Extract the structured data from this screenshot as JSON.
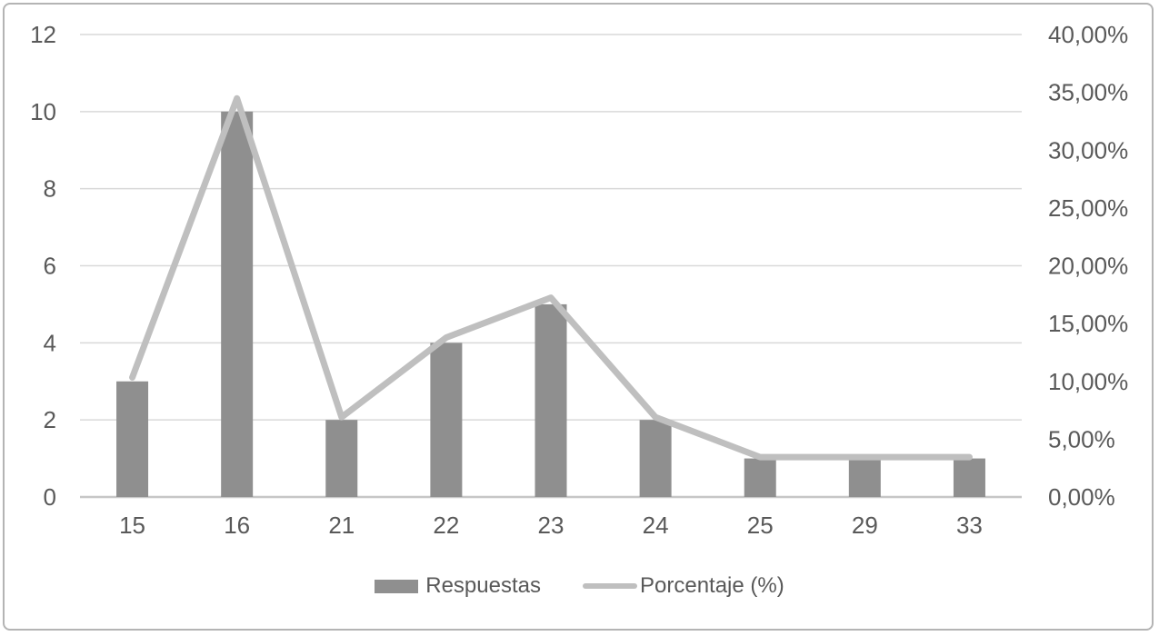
{
  "chart_data": {
    "type": "combo-bar-line",
    "categories": [
      "15",
      "16",
      "21",
      "22",
      "23",
      "24",
      "25",
      "29",
      "33"
    ],
    "series": [
      {
        "name": "Respuestas",
        "type": "bar",
        "axis": "left",
        "color": "#8f8f8f",
        "values": [
          3,
          10,
          2,
          4,
          5,
          2,
          1,
          1,
          1
        ]
      },
      {
        "name": "Porcentaje (%)",
        "type": "line",
        "axis": "right",
        "color": "#bfbfbf",
        "values": [
          10.34,
          34.48,
          6.9,
          13.79,
          17.24,
          6.9,
          3.45,
          3.45,
          3.45
        ]
      }
    ],
    "left_axis": {
      "min": 0,
      "max": 12,
      "step": 2,
      "ticks": [
        "0",
        "2",
        "4",
        "6",
        "8",
        "10",
        "12"
      ]
    },
    "right_axis": {
      "min": 0,
      "max": 40,
      "step": 5,
      "ticks": [
        "0,00%",
        "5,00%",
        "10,00%",
        "15,00%",
        "20,00%",
        "25,00%",
        "30,00%",
        "35,00%",
        "40,00%"
      ]
    },
    "title": "",
    "xlabel": "",
    "ylabel": "",
    "grid": true,
    "legend_position": "bottom",
    "colors": {
      "gridline": "#d9d9d9",
      "axis_line": "#c6c6c6",
      "tick_text": "#595959",
      "frame_border": "#b4b4b4",
      "background": "#ffffff"
    }
  }
}
